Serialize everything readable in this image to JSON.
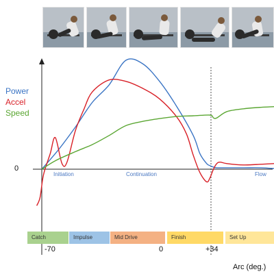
{
  "chart_data": {
    "type": "line",
    "xlabel": "Arc (deg.)",
    "y_zero_label": "0",
    "x_ticks": [
      "-70",
      "0",
      "+34"
    ],
    "x_range": [
      -70,
      68
    ],
    "y_range": [
      -55,
      155
    ],
    "annotations": [
      "Initiation",
      "Continuation",
      "Flow"
    ],
    "phases": [
      {
        "label": "Catch",
        "color": "#a9d18e"
      },
      {
        "label": "Impulse",
        "color": "#9dc3e6"
      },
      {
        "label": "Mid Drive",
        "color": "#f4b183"
      },
      {
        "label": "Finish",
        "color": "#ffd966"
      },
      {
        "label": "Set Up",
        "color": "#ffe699"
      }
    ],
    "series": [
      {
        "name": "Power",
        "color": "#3a74c4",
        "x": [
          -70,
          -60,
          -50,
          -40,
          -30,
          -20,
          -10,
          0,
          10,
          20,
          24,
          28,
          30,
          32,
          34,
          40,
          50,
          60,
          68
        ],
        "y": [
          0,
          28,
          60,
          95,
          120,
          155,
          150,
          125,
          90,
          48,
          22,
          8,
          5,
          3,
          2,
          2,
          2,
          2,
          1
        ]
      },
      {
        "name": "Accel",
        "color": "#d81f26",
        "x": [
          -73,
          -71,
          -69,
          -65,
          -62,
          -58,
          -55,
          -50,
          -45,
          -40,
          -30,
          -20,
          -10,
          0,
          10,
          16,
          20,
          24,
          28,
          30,
          32,
          34,
          36,
          40,
          50,
          60,
          68
        ],
        "y": [
          -52,
          -40,
          -8,
          22,
          45,
          8,
          10,
          55,
          85,
          110,
          127,
          125,
          115,
          100,
          75,
          50,
          20,
          -5,
          -18,
          -12,
          0,
          8,
          10,
          8,
          6,
          7,
          8
        ]
      },
      {
        "name": "Speed",
        "color": "#5aa632",
        "x": [
          -70,
          -62,
          -50,
          -40,
          -30,
          -20,
          -10,
          0,
          10,
          20,
          30,
          32,
          34,
          40,
          50,
          60,
          68
        ],
        "y": [
          0,
          12,
          25,
          35,
          48,
          62,
          68,
          72,
          75,
          76,
          77,
          73,
          73,
          82,
          86,
          88,
          89
        ]
      }
    ]
  }
}
